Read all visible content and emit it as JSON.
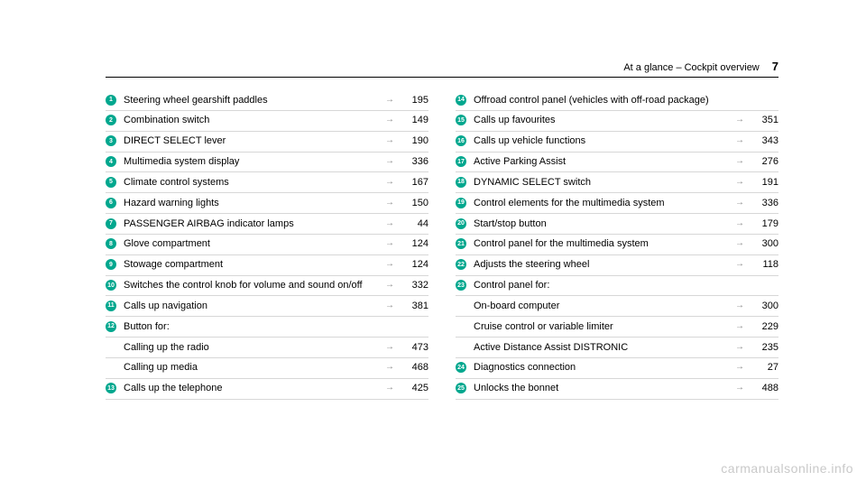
{
  "header": {
    "section": "At a glance – Cockpit overview",
    "page_number": "7"
  },
  "columns": [
    [
      {
        "n": "1",
        "label": "Steering wheel gearshift paddles",
        "page": "195"
      },
      {
        "n": "2",
        "label": "Combination switch",
        "page": "149"
      },
      {
        "n": "3",
        "label": "DIRECT SELECT lever",
        "page": "190"
      },
      {
        "n": "4",
        "label": "Multimedia system display",
        "page": "336"
      },
      {
        "n": "5",
        "label": "Climate control systems",
        "page": "167"
      },
      {
        "n": "6",
        "label": "Hazard warning lights",
        "page": "150"
      },
      {
        "n": "7",
        "label": "PASSENGER AIRBAG indicator lamps",
        "page": "44"
      },
      {
        "n": "8",
        "label": "Glove compartment",
        "page": "124"
      },
      {
        "n": "9",
        "label": "Stowage compartment",
        "page": "124"
      },
      {
        "n": "10",
        "label": "Switches the control knob for volume and sound on/off",
        "page": "332"
      },
      {
        "n": "11",
        "label": "Calls up navigation",
        "page": "381"
      },
      {
        "n": "12",
        "label": "Button for:",
        "page": ""
      },
      {
        "n": "",
        "label": "Calling up the radio",
        "page": "473",
        "sub": true
      },
      {
        "n": "",
        "label": "Calling up media",
        "page": "468",
        "sub": true
      },
      {
        "n": "13",
        "label": "Calls up the telephone",
        "page": "425"
      }
    ],
    [
      {
        "n": "14",
        "label": "Offroad control panel (vehicles with off-road package)",
        "page": ""
      },
      {
        "n": "15",
        "label": "Calls up favourites",
        "page": "351"
      },
      {
        "n": "16",
        "label": "Calls up vehicle functions",
        "page": "343"
      },
      {
        "n": "17",
        "label": "Active Parking Assist",
        "page": "276"
      },
      {
        "n": "18",
        "label": "DYNAMIC SELECT switch",
        "page": "191"
      },
      {
        "n": "19",
        "label": "Control elements for the multimedia system",
        "page": "336"
      },
      {
        "n": "20",
        "label": "Start/stop button",
        "page": "179"
      },
      {
        "n": "21",
        "label": "Control panel for the multimedia system",
        "page": "300"
      },
      {
        "n": "22",
        "label": "Adjusts the steering wheel",
        "page": "118"
      },
      {
        "n": "23",
        "label": "Control panel for:",
        "page": ""
      },
      {
        "n": "",
        "label": "On-board computer",
        "page": "300",
        "sub": true
      },
      {
        "n": "",
        "label": "Cruise control or variable limiter",
        "page": "229",
        "sub": true
      },
      {
        "n": "",
        "label": "Active Distance Assist DISTRONIC",
        "page": "235",
        "sub": true
      },
      {
        "n": "24",
        "label": "Diagnostics connection",
        "page": "27"
      },
      {
        "n": "25",
        "label": "Unlocks the bonnet",
        "page": "488"
      }
    ]
  ],
  "arrow_glyph": "→",
  "watermark": "carmanualsonline.info",
  "style": {
    "badge_color": "#00a78e",
    "divider_color": "#d7d7d7",
    "text_color": "#000000",
    "arrow_color": "#888888",
    "watermark_color": "#c9c9c9",
    "font_size_body": 11,
    "font_size_pagenum": 13,
    "font_size_badge": 7
  }
}
